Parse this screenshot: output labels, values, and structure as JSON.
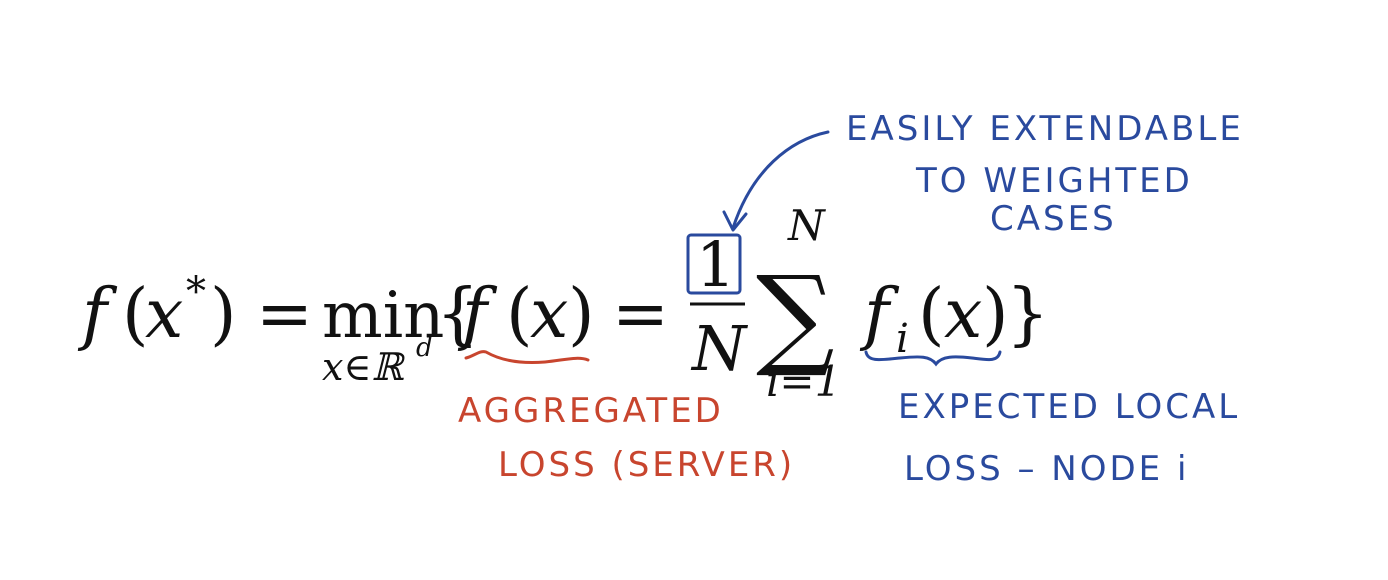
{
  "equation": {
    "lhs_f": "f",
    "lhs_paren_open": "(",
    "lhs_x": "x",
    "lhs_star": "*",
    "lhs_paren_close": ")",
    "equals_1": "=",
    "min_word": "min",
    "min_subscript": "x∈ℝ",
    "min_subscript_sup": "d",
    "brace_open": "{",
    "agg_f": "f",
    "agg_paren_open": "(",
    "agg_x": "x",
    "agg_paren_close": ")",
    "equals_2": "=",
    "frac_numerator": "1",
    "frac_denominator": "N",
    "sum_symbol": "∑",
    "sum_upper": "N",
    "sum_lower": "i=1",
    "local_f": "f",
    "local_sub": "i",
    "local_paren_open": "(",
    "local_x": "x",
    "local_paren_close": ")",
    "brace_close": "}"
  },
  "annotations": {
    "weighted_line1": "EASILY EXTENDABLE",
    "weighted_line2": "TO WEIGHTED",
    "weighted_line3": "CASES",
    "aggregated_line1": "AGGREGATED",
    "aggregated_line2": "LOSS (SERVER)",
    "local_line1": "EXPECTED LOCAL",
    "local_line2": "LOSS – NODE i"
  },
  "colors": {
    "blue_ink": "#2a4a9e",
    "red_ink": "#c8452e",
    "math_ink": "#111111",
    "background": "#ffffff"
  }
}
